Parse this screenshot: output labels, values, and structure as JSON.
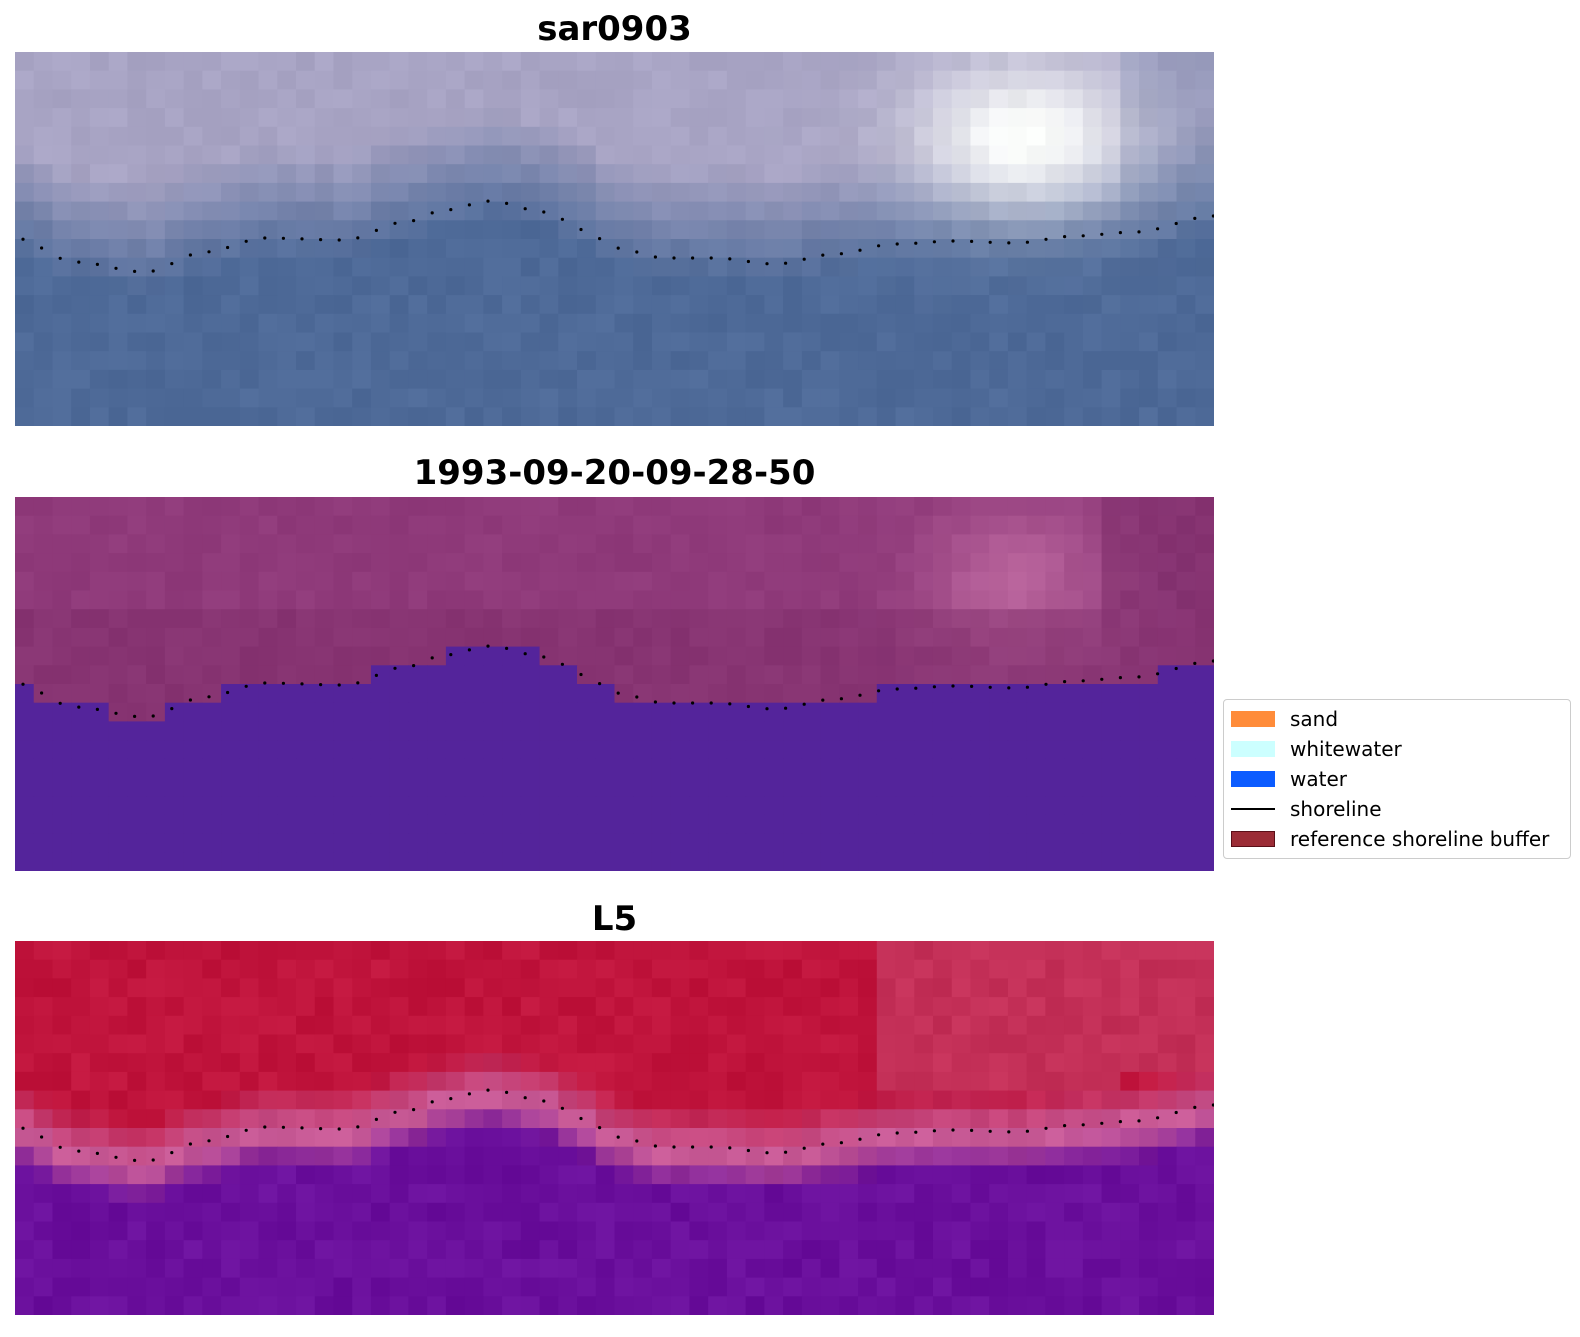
{
  "panels": [
    {
      "title": "sar0903",
      "style": "sar"
    },
    {
      "title": "1993-09-20-09-28-50",
      "style": "classified"
    },
    {
      "title": "L5",
      "style": "ndwi"
    }
  ],
  "legend": {
    "items": [
      {
        "label": "sand",
        "color": "#ff8c3a",
        "kind": "patch"
      },
      {
        "label": "whitewater",
        "color": "#ccffff",
        "kind": "patch"
      },
      {
        "label": "water",
        "color": "#0c5cff",
        "kind": "patch"
      },
      {
        "label": "shoreline",
        "color": "#000000",
        "kind": "line"
      },
      {
        "label": "reference shoreline buffer",
        "color": "#9b2c36",
        "kind": "patch"
      }
    ]
  },
  "colors": {
    "sar_land": "#a8a4c4",
    "sar_water": "#4e6a98",
    "classified_land": "#8f3a7a",
    "classified_water": "#54249b",
    "ndwi_land": "#c0143c",
    "ndwi_water": "#6a0f9c",
    "shoreline_dots": "#000000"
  }
}
